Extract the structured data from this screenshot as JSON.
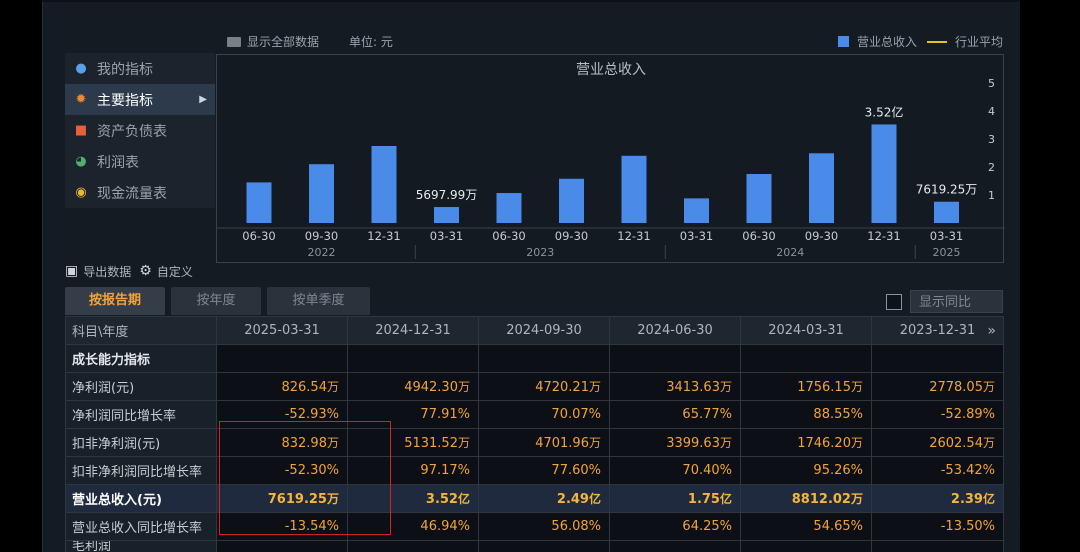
{
  "menu": [
    {
      "label": "我的指标",
      "icon": "user-icon",
      "color": "#5aa0e8",
      "active": false
    },
    {
      "label": "主要指标",
      "icon": "star-icon",
      "color": "#f08a30",
      "active": true
    },
    {
      "label": "资产负债表",
      "icon": "document-icon",
      "color": "#e8603a",
      "active": false
    },
    {
      "label": "利润表",
      "icon": "pie-icon",
      "color": "#50b070",
      "active": false
    },
    {
      "label": "现金流量表",
      "icon": "coins-icon",
      "color": "#e8b830",
      "active": false
    }
  ],
  "chart_header": {
    "show_all": "显示全部数据",
    "unit": "单位: 元",
    "legend_bar": "营业总收入",
    "legend_line": "行业平均"
  },
  "colors": {
    "bar": "#4a8ae8",
    "line": "#e8c020",
    "accent": "#f2a33a"
  },
  "chart_data": {
    "type": "bar",
    "title": "营业总收入",
    "categories": [
      "06-30",
      "09-30",
      "12-31",
      "03-31",
      "06-30",
      "09-30",
      "12-31",
      "03-31",
      "06-30",
      "09-30",
      "12-31",
      "03-31"
    ],
    "years": [
      {
        "label": "2022",
        "from": 0,
        "to": 2
      },
      {
        "label": "2023",
        "from": 3,
        "to": 6
      },
      {
        "label": "2024",
        "from": 7,
        "to": 10
      },
      {
        "label": "2025",
        "from": 11,
        "to": 11
      }
    ],
    "values": [
      1.45,
      2.1,
      2.75,
      0.57,
      1.07,
      1.58,
      2.4,
      0.88,
      1.75,
      2.49,
      3.52,
      0.76
    ],
    "data_labels": [
      {
        "index": 3,
        "text": "5697.99万"
      },
      {
        "index": 10,
        "text": "3.52亿"
      },
      {
        "index": 11,
        "text": "7619.25万"
      }
    ],
    "y_ticks": [
      "1",
      "2",
      "3",
      "4",
      "5"
    ],
    "ylim": [
      0,
      5
    ],
    "legend": "top-right"
  },
  "toolbar": {
    "export": "导出数据",
    "custom": "自定义"
  },
  "tabs": [
    "按报告期",
    "按年度",
    "按单季度"
  ],
  "yoy_label": "显示同比",
  "table": {
    "corner": "科目\\年度",
    "columns": [
      "2025-03-31",
      "2024-12-31",
      "2024-09-30",
      "2024-06-30",
      "2024-03-31",
      "2023-12-31"
    ],
    "section": "成长能力指标",
    "rows": [
      {
        "label": "净利润(元)",
        "values": [
          [
            "826.54",
            "万"
          ],
          [
            "4942.30",
            "万"
          ],
          [
            "4720.21",
            "万"
          ],
          [
            "3413.63",
            "万"
          ],
          [
            "1756.15",
            "万"
          ],
          [
            "2778.05",
            "万"
          ]
        ]
      },
      {
        "label": "净利润同比增长率",
        "values": [
          [
            "-52.93%",
            ""
          ],
          [
            "77.91%",
            ""
          ],
          [
            "70.07%",
            ""
          ],
          [
            "65.77%",
            ""
          ],
          [
            "88.55%",
            ""
          ],
          [
            "-52.89%",
            ""
          ]
        ]
      },
      {
        "label": "扣非净利润(元)",
        "values": [
          [
            "832.98",
            "万"
          ],
          [
            "5131.52",
            "万"
          ],
          [
            "4701.96",
            "万"
          ],
          [
            "3399.63",
            "万"
          ],
          [
            "1746.20",
            "万"
          ],
          [
            "2602.54",
            "万"
          ]
        ]
      },
      {
        "label": "扣非净利润同比增长率",
        "values": [
          [
            "-52.30%",
            ""
          ],
          [
            "97.17%",
            ""
          ],
          [
            "77.60%",
            ""
          ],
          [
            "70.40%",
            ""
          ],
          [
            "95.26%",
            ""
          ],
          [
            "-53.42%",
            ""
          ]
        ]
      },
      {
        "label": "营业总收入(元)",
        "highlight": true,
        "values": [
          [
            "7619.25",
            "万"
          ],
          [
            "3.52",
            "亿"
          ],
          [
            "2.49",
            "亿"
          ],
          [
            "1.75",
            "亿"
          ],
          [
            "8812.02",
            "万"
          ],
          [
            "2.39",
            "亿"
          ]
        ]
      },
      {
        "label": "营业总收入同比增长率",
        "values": [
          [
            "-13.54%",
            ""
          ],
          [
            "46.94%",
            ""
          ],
          [
            "56.08%",
            ""
          ],
          [
            "64.25%",
            ""
          ],
          [
            "54.65%",
            ""
          ],
          [
            "-13.50%",
            ""
          ]
        ]
      }
    ],
    "partial_row_label": "毛利润"
  }
}
